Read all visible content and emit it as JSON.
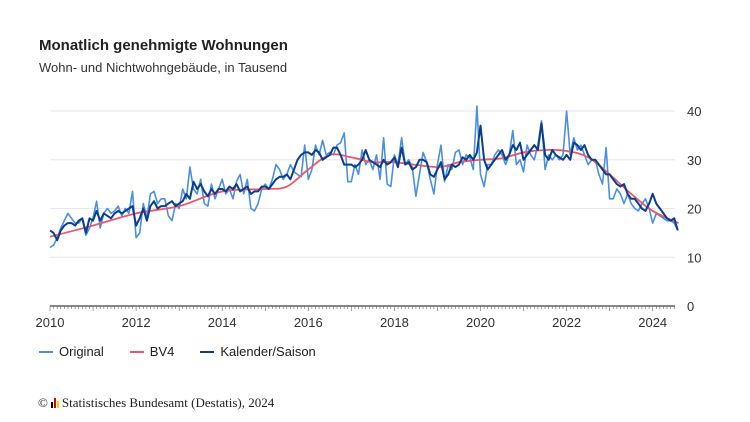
{
  "chart_data": {
    "type": "line",
    "title": "Monatlich genehmigte Wohnungen",
    "subtitle": "Wohn- und Nichtwohngebäude, in Tausend",
    "xlabel": "",
    "ylabel": "",
    "xlim": [
      2010,
      2024.65
    ],
    "ylim": [
      0,
      40
    ],
    "x_ticks": [
      "2010",
      "2012",
      "2014",
      "2016",
      "2018",
      "2020",
      "2022",
      "2024"
    ],
    "y_ticks": [
      "0",
      "10",
      "20",
      "30",
      "40"
    ],
    "grid": true,
    "legend_position": "bottom-left",
    "start": "2010-01",
    "series": [
      {
        "name": "Original",
        "color": "#4a90e2",
        "monthly": [
          12,
          12.5,
          14,
          16,
          17.5,
          19,
          18,
          17,
          17,
          18,
          14.5,
          16,
          18,
          21.5,
          16,
          19,
          20,
          19,
          19.5,
          20.5,
          18.5,
          20,
          19,
          23.5,
          14,
          15,
          21,
          18,
          23,
          23.5,
          21,
          22,
          22,
          18.5,
          17.5,
          21,
          20,
          24,
          22,
          28.5,
          24,
          23,
          26,
          21,
          20.5,
          25,
          22,
          24,
          26,
          23,
          24,
          22,
          25.5,
          27,
          23,
          26,
          20,
          19.5,
          21,
          24,
          25,
          24,
          26,
          29,
          28,
          26,
          27,
          29,
          27.5,
          27,
          26.5,
          33,
          26,
          28,
          33,
          31,
          34,
          31,
          31.5,
          31,
          33,
          33.5,
          35.5,
          25.5,
          25.5,
          29,
          27,
          32,
          29,
          30,
          28,
          31,
          26,
          34.5,
          25,
          24.5,
          31,
          29,
          34.5,
          29,
          30,
          28.5,
          22.5,
          27,
          31.5,
          29.5,
          26,
          23,
          29,
          33,
          25.5,
          29,
          28,
          31.5,
          32,
          29,
          31,
          30.5,
          28,
          41,
          27,
          24.5,
          29,
          29,
          31,
          32,
          31,
          29,
          31,
          36,
          29,
          30,
          27.5,
          33,
          31,
          30,
          33,
          38,
          28,
          31,
          30,
          31,
          30,
          31,
          40,
          31,
          34.5,
          32,
          33,
          31,
          29,
          30,
          30,
          27,
          25,
          32.5,
          22,
          22,
          24,
          23,
          21,
          23,
          21,
          20,
          19.5,
          21,
          22,
          20,
          17,
          19,
          18.5,
          18,
          17.5,
          17.5,
          17,
          15.5
        ]
      },
      {
        "name": "BV4",
        "color": "#f0566a",
        "x": [
          2010,
          2011,
          2012,
          2013,
          2014,
          2015,
          2015.5,
          2016,
          2016.5,
          2017,
          2017.5,
          2018,
          2019,
          2019.5,
          2020,
          2020.5,
          2021,
          2021.5,
          2022,
          2022.5,
          2023,
          2023.5,
          2024,
          2024.6
        ],
        "values": [
          14.2,
          16.5,
          19,
          20.5,
          23.5,
          24,
          24.5,
          28,
          31,
          30.5,
          29.5,
          29.5,
          28.5,
          29.5,
          30,
          30.3,
          31.5,
          32,
          31.8,
          30.5,
          27,
          23,
          19.5,
          17
        ]
      },
      {
        "name": "Kalender/Saison",
        "color": "#0b3f8c",
        "monthly": [
          15.5,
          15,
          13.5,
          15.5,
          16.5,
          17,
          17,
          16.5,
          17.5,
          18,
          15,
          18,
          17.5,
          19.5,
          17.5,
          19,
          18.5,
          18,
          19,
          19.5,
          19,
          19.5,
          20,
          20.5,
          16.5,
          18,
          20,
          17.5,
          20.5,
          21.5,
          20,
          20.5,
          20.5,
          21,
          21.5,
          20.5,
          21,
          21.5,
          23,
          22,
          25.5,
          24,
          25,
          23.5,
          22.5,
          24,
          23,
          24,
          24,
          23.5,
          24.5,
          24,
          25,
          23.5,
          24,
          24.5,
          23,
          23.5,
          23.5,
          24.5,
          24.5,
          24,
          25,
          26,
          26.5,
          26.5,
          27,
          26,
          28,
          30,
          31,
          31.5,
          31.5,
          31,
          32,
          31.5,
          30,
          30.5,
          31,
          32.5,
          32.5,
          31,
          29,
          29,
          29,
          28.5,
          29,
          30,
          32,
          30,
          29.5,
          29,
          28.5,
          30,
          29,
          29.5,
          30.5,
          28.5,
          32.5,
          29,
          29.5,
          28,
          28.5,
          30,
          30,
          29.5,
          27,
          26.5,
          28,
          29.5,
          26,
          27,
          29,
          28.5,
          29,
          30.5,
          30,
          31,
          30,
          31.5,
          37,
          30,
          28,
          29,
          30,
          31,
          32,
          30,
          31,
          33,
          32,
          33.5,
          30,
          31,
          32,
          33,
          32,
          37.5,
          31,
          30,
          32,
          31,
          30.5,
          30,
          31,
          30,
          33.5,
          33,
          32,
          33,
          31,
          30,
          30,
          29,
          28,
          27,
          27,
          26,
          25,
          24.5,
          25,
          23,
          22,
          22,
          21,
          20,
          19.5,
          21,
          23,
          21,
          20,
          19,
          18,
          17.5,
          18,
          15.5
        ]
      }
    ]
  },
  "footer": {
    "copyright": "©",
    "source": "Statistisches Bundesamt (Destatis), 2024"
  }
}
